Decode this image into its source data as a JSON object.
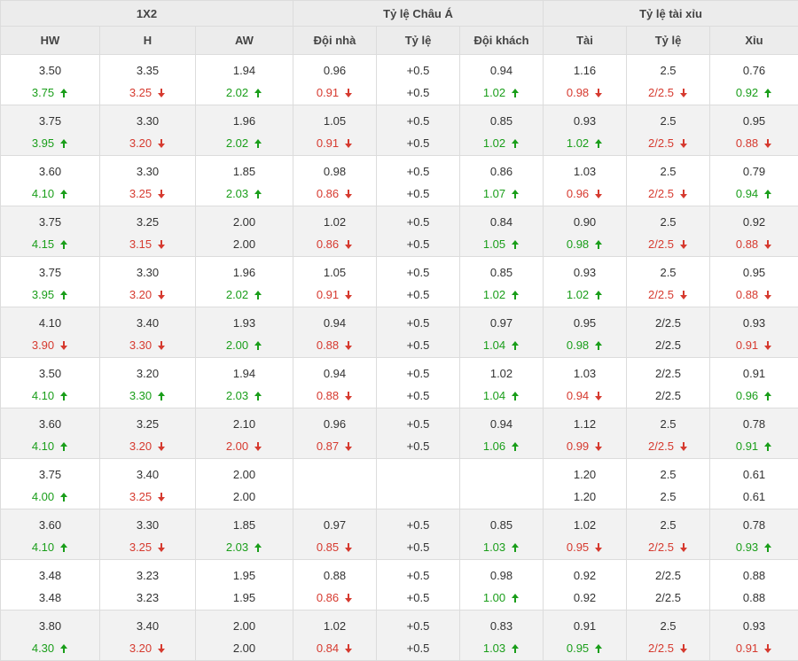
{
  "header": {
    "groups": [
      "1X2",
      "Tỷ lệ Châu Á",
      "Tỷ lệ tài xỉu"
    ],
    "columns": [
      "HW",
      "H",
      "AW",
      "Đội nhà",
      "Tỷ lệ",
      "Đội khách",
      "Tài",
      "Tỷ lệ",
      "Xỉu"
    ]
  },
  "colors": {
    "up": "#1a9e1a",
    "down": "#d63a2f"
  },
  "rows": [
    [
      [
        "3.50",
        "3.75",
        "up"
      ],
      [
        "3.35",
        "3.25",
        "down"
      ],
      [
        "1.94",
        "2.02",
        "up"
      ],
      [
        "0.96",
        "0.91",
        "down"
      ],
      [
        "+0.5",
        "+0.5",
        ""
      ],
      [
        "0.94",
        "1.02",
        "up"
      ],
      [
        "1.16",
        "0.98",
        "down"
      ],
      [
        "2.5",
        "2/2.5",
        "down"
      ],
      [
        "0.76",
        "0.92",
        "up"
      ]
    ],
    [
      [
        "3.75",
        "3.95",
        "up"
      ],
      [
        "3.30",
        "3.20",
        "down"
      ],
      [
        "1.96",
        "2.02",
        "up"
      ],
      [
        "1.05",
        "0.91",
        "down"
      ],
      [
        "+0.5",
        "+0.5",
        ""
      ],
      [
        "0.85",
        "1.02",
        "up"
      ],
      [
        "0.93",
        "1.02",
        "up"
      ],
      [
        "2.5",
        "2/2.5",
        "down"
      ],
      [
        "0.95",
        "0.88",
        "down"
      ]
    ],
    [
      [
        "3.60",
        "4.10",
        "up"
      ],
      [
        "3.30",
        "3.25",
        "down"
      ],
      [
        "1.85",
        "2.03",
        "up"
      ],
      [
        "0.98",
        "0.86",
        "down"
      ],
      [
        "+0.5",
        "+0.5",
        ""
      ],
      [
        "0.86",
        "1.07",
        "up"
      ],
      [
        "1.03",
        "0.96",
        "down"
      ],
      [
        "2.5",
        "2/2.5",
        "down"
      ],
      [
        "0.79",
        "0.94",
        "up"
      ]
    ],
    [
      [
        "3.75",
        "4.15",
        "up"
      ],
      [
        "3.25",
        "3.15",
        "down"
      ],
      [
        "2.00",
        "2.00",
        ""
      ],
      [
        "1.02",
        "0.86",
        "down"
      ],
      [
        "+0.5",
        "+0.5",
        ""
      ],
      [
        "0.84",
        "1.05",
        "up"
      ],
      [
        "0.90",
        "0.98",
        "up"
      ],
      [
        "2.5",
        "2/2.5",
        "down"
      ],
      [
        "0.92",
        "0.88",
        "down"
      ]
    ],
    [
      [
        "3.75",
        "3.95",
        "up"
      ],
      [
        "3.30",
        "3.20",
        "down"
      ],
      [
        "1.96",
        "2.02",
        "up"
      ],
      [
        "1.05",
        "0.91",
        "down"
      ],
      [
        "+0.5",
        "+0.5",
        ""
      ],
      [
        "0.85",
        "1.02",
        "up"
      ],
      [
        "0.93",
        "1.02",
        "up"
      ],
      [
        "2.5",
        "2/2.5",
        "down"
      ],
      [
        "0.95",
        "0.88",
        "down"
      ]
    ],
    [
      [
        "4.10",
        "3.90",
        "down"
      ],
      [
        "3.40",
        "3.30",
        "down"
      ],
      [
        "1.93",
        "2.00",
        "up"
      ],
      [
        "0.94",
        "0.88",
        "down"
      ],
      [
        "+0.5",
        "+0.5",
        ""
      ],
      [
        "0.97",
        "1.04",
        "up"
      ],
      [
        "0.95",
        "0.98",
        "up"
      ],
      [
        "2/2.5",
        "2/2.5",
        ""
      ],
      [
        "0.93",
        "0.91",
        "down"
      ]
    ],
    [
      [
        "3.50",
        "4.10",
        "up"
      ],
      [
        "3.20",
        "3.30",
        "up"
      ],
      [
        "1.94",
        "2.03",
        "up"
      ],
      [
        "0.94",
        "0.88",
        "down"
      ],
      [
        "+0.5",
        "+0.5",
        ""
      ],
      [
        "1.02",
        "1.04",
        "up"
      ],
      [
        "1.03",
        "0.94",
        "down"
      ],
      [
        "2/2.5",
        "2/2.5",
        ""
      ],
      [
        "0.91",
        "0.96",
        "up"
      ]
    ],
    [
      [
        "3.60",
        "4.10",
        "up"
      ],
      [
        "3.25",
        "3.20",
        "down"
      ],
      [
        "2.10",
        "2.00",
        "down"
      ],
      [
        "0.96",
        "0.87",
        "down"
      ],
      [
        "+0.5",
        "+0.5",
        ""
      ],
      [
        "0.94",
        "1.06",
        "up"
      ],
      [
        "1.12",
        "0.99",
        "down"
      ],
      [
        "2.5",
        "2/2.5",
        "down"
      ],
      [
        "0.78",
        "0.91",
        "up"
      ]
    ],
    [
      [
        "3.75",
        "4.00",
        "up"
      ],
      [
        "3.40",
        "3.25",
        "down"
      ],
      [
        "2.00",
        "2.00",
        ""
      ],
      [
        "",
        "",
        ""
      ],
      [
        "",
        "",
        ""
      ],
      [
        "",
        "",
        ""
      ],
      [
        "1.20",
        "1.20",
        ""
      ],
      [
        "2.5",
        "2.5",
        ""
      ],
      [
        "0.61",
        "0.61",
        ""
      ]
    ],
    [
      [
        "3.60",
        "4.10",
        "up"
      ],
      [
        "3.30",
        "3.25",
        "down"
      ],
      [
        "1.85",
        "2.03",
        "up"
      ],
      [
        "0.97",
        "0.85",
        "down"
      ],
      [
        "+0.5",
        "+0.5",
        ""
      ],
      [
        "0.85",
        "1.03",
        "up"
      ],
      [
        "1.02",
        "0.95",
        "down"
      ],
      [
        "2.5",
        "2/2.5",
        "down"
      ],
      [
        "0.78",
        "0.93",
        "up"
      ]
    ],
    [
      [
        "3.48",
        "3.48",
        ""
      ],
      [
        "3.23",
        "3.23",
        ""
      ],
      [
        "1.95",
        "1.95",
        ""
      ],
      [
        "0.88",
        "0.86",
        "down"
      ],
      [
        "+0.5",
        "+0.5",
        ""
      ],
      [
        "0.98",
        "1.00",
        "up"
      ],
      [
        "0.92",
        "0.92",
        ""
      ],
      [
        "2/2.5",
        "2/2.5",
        ""
      ],
      [
        "0.88",
        "0.88",
        ""
      ]
    ],
    [
      [
        "3.80",
        "4.30",
        "up"
      ],
      [
        "3.40",
        "3.20",
        "down"
      ],
      [
        "2.00",
        "2.00",
        ""
      ],
      [
        "1.02",
        "0.84",
        "down"
      ],
      [
        "+0.5",
        "+0.5",
        ""
      ],
      [
        "0.83",
        "1.03",
        "up"
      ],
      [
        "0.91",
        "0.95",
        "up"
      ],
      [
        "2.5",
        "2/2.5",
        "down"
      ],
      [
        "0.93",
        "0.91",
        "down"
      ]
    ]
  ]
}
